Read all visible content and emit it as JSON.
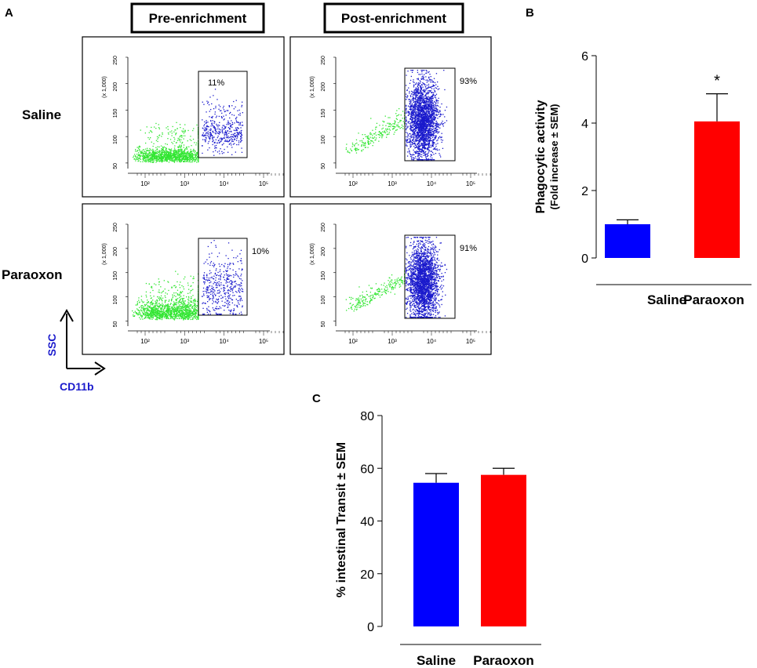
{
  "panels": {
    "a": "A",
    "b": "B",
    "c": "C"
  },
  "flow": {
    "headers": [
      "Pre-enrichment",
      "Post-enrichment"
    ],
    "rows": [
      "Saline",
      "Paraoxon"
    ],
    "y_axis_label": "SSC",
    "x_axis_label": "CD11b",
    "y_scale": "(x 1,000)",
    "y_ticks": [
      "250",
      "200",
      "150",
      "100",
      "50"
    ],
    "x_ticks": [
      "10²",
      "10³",
      "10⁴",
      "10⁵"
    ],
    "gates": [
      [
        "11%",
        "93%"
      ],
      [
        "10%",
        "91%"
      ]
    ],
    "colors": {
      "ungated": "#33e633",
      "gated": "#1a1acc"
    }
  },
  "chart_data": [
    {
      "panel": "B",
      "type": "bar",
      "categories": [
        "Saline",
        "Paraoxon"
      ],
      "values": [
        1.0,
        4.05
      ],
      "errors": [
        0.13,
        0.82
      ],
      "colors": [
        "#0000ff",
        "#ff0000"
      ],
      "ylabel": "Phagocytic activity",
      "ylabel_sub": "(Fold increase ± SEM)",
      "ylim": [
        0,
        6
      ],
      "yticks": [
        0,
        2,
        4,
        6
      ],
      "annotation": {
        "text": "*",
        "category": "Paraoxon"
      }
    },
    {
      "panel": "C",
      "type": "bar",
      "categories": [
        "Saline",
        "Paraoxon"
      ],
      "values": [
        54.5,
        57.5
      ],
      "errors": [
        3.5,
        2.5
      ],
      "colors": [
        "#0000ff",
        "#ff0000"
      ],
      "ylabel": "% intestinal Transit ± SEM",
      "ylim": [
        0,
        80
      ],
      "yticks": [
        0,
        20,
        40,
        60,
        80
      ]
    }
  ]
}
